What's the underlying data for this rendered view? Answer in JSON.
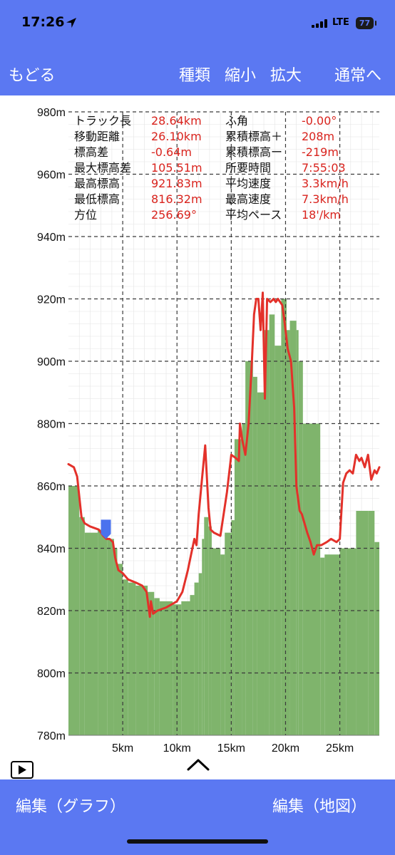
{
  "status": {
    "time": "17:26",
    "network": "LTE",
    "battery": "77",
    "icons": [
      "location-arrow-icon",
      "signal-bars-icon",
      "battery-icon"
    ]
  },
  "nav": {
    "back": "もどる",
    "type": "種類",
    "zoom_out": "縮小",
    "zoom_in": "拡大",
    "normal": "通常へ"
  },
  "stats": [
    {
      "label": "トラック長",
      "value": "28.64km"
    },
    {
      "label": "ふ角",
      "value": "-0.00°"
    },
    {
      "label": "移動距離",
      "value": "26.10km"
    },
    {
      "label": "累積標高＋",
      "value": "208m"
    },
    {
      "label": "標高差",
      "value": "-0.64m"
    },
    {
      "label": "累積標高ー",
      "value": "-219m"
    },
    {
      "label": "最大標高差",
      "value": "105.51m"
    },
    {
      "label": "所要時間",
      "value": "7:55:03"
    },
    {
      "label": "最高標高",
      "value": "921.83m"
    },
    {
      "label": "平均速度",
      "value": "3.3km/h"
    },
    {
      "label": "最低標高",
      "value": "816.32m"
    },
    {
      "label": "最高速度",
      "value": "7.3km/h"
    },
    {
      "label": "方位",
      "value": "256.69°"
    },
    {
      "label": "平均ペース",
      "value": "18'/km"
    }
  ],
  "colors": {
    "accent": "#5b78f2",
    "line": "#e3312a",
    "fill": "#7fb46c",
    "value_text": "#d9231d",
    "marker": "#4a72ee"
  },
  "chart_data": {
    "type": "area",
    "title": "",
    "xlabel": "",
    "ylabel": "",
    "x_unit": "km",
    "xlim": [
      0,
      28.64
    ],
    "ylim": [
      780,
      980
    ],
    "grid": true,
    "x_ticks": [
      5,
      10,
      15,
      20,
      25
    ],
    "x_tick_labels": [
      "5km",
      "10km",
      "15km",
      "20km",
      "25km"
    ],
    "y_ticks": [
      780,
      800,
      820,
      840,
      860,
      880,
      900,
      920,
      940,
      960,
      980
    ],
    "y_tick_labels": [
      "780m",
      "800m",
      "820m",
      "840m",
      "860m",
      "880m",
      "900m",
      "920m",
      "940m",
      "960m",
      "980m"
    ],
    "series": [
      {
        "kind": "line",
        "x": [
          0,
          0.5,
          0.8,
          1.2,
          1.5,
          2.0,
          2.8,
          3.2,
          3.5,
          3.8,
          4.1,
          4.3,
          4.6,
          5.0,
          5.5,
          6.2,
          6.8,
          7.2,
          7.5,
          7.6,
          7.8,
          8.2,
          9.0,
          9.5,
          10.0,
          10.5,
          11.0,
          11.3,
          11.6,
          11.8,
          12.0,
          12.3,
          12.6,
          12.9,
          13.1,
          13.4,
          14.0,
          14.6,
          15.0,
          15.4,
          15.7,
          15.8,
          16.0,
          16.3,
          16.6,
          16.9,
          17.1,
          17.3,
          17.5,
          17.7,
          17.9,
          18.0,
          18.1,
          18.3,
          18.6,
          18.9,
          19.1,
          19.3,
          19.5,
          19.7,
          19.9,
          20.2,
          20.5,
          20.8,
          21.0,
          21.3,
          21.5,
          22.0,
          22.3,
          22.6,
          22.9,
          23.3,
          23.8,
          24.2,
          24.7,
          25.0,
          25.3,
          25.6,
          25.9,
          26.2,
          26.5,
          26.8,
          27.0,
          27.3,
          27.6,
          27.9,
          28.2,
          28.4,
          28.64
        ],
        "y": [
          867,
          866,
          863,
          850,
          848,
          847,
          846,
          844,
          843,
          843,
          842,
          837,
          833,
          832,
          830,
          829,
          828,
          826,
          818,
          823,
          819,
          820,
          821,
          822,
          823,
          826,
          833,
          838,
          843,
          841,
          851,
          862,
          873,
          853,
          846,
          845,
          844,
          858,
          870,
          869,
          868,
          880,
          875,
          870,
          880,
          900,
          915,
          920,
          920,
          910,
          922,
          905,
          888,
          920,
          919,
          920,
          919,
          920,
          919,
          918,
          913,
          904,
          900,
          885,
          860,
          852,
          851,
          845,
          842,
          838,
          841,
          841,
          842,
          843,
          842,
          843,
          861,
          864,
          865,
          864,
          870,
          868,
          869,
          866,
          870,
          862,
          865,
          864,
          866
        ]
      },
      {
        "kind": "bar",
        "x": [
          0,
          1.0,
          1.5,
          2.7,
          3.6,
          4.2,
          4.5,
          5.0,
          5.5,
          6.2,
          7.3,
          7.9,
          8.4,
          9.6,
          10.4,
          11.2,
          11.6,
          12.0,
          12.3,
          12.5,
          12.9,
          13.2,
          14.0,
          14.4,
          15.0,
          15.3,
          16.0,
          16.3,
          17.0,
          17.4,
          18.0,
          18.5,
          19.0,
          19.6,
          20.1,
          20.4,
          21.0,
          21.2,
          21.6,
          23.2,
          23.6,
          25.0,
          25.6,
          26.5,
          27.6,
          28.2
        ],
        "y": [
          860,
          850,
          845,
          846,
          843,
          840,
          835,
          830,
          829,
          828,
          826,
          824,
          823,
          822,
          823,
          825,
          829,
          832,
          843,
          850,
          847,
          840,
          838,
          845,
          849,
          875,
          880,
          900,
          895,
          890,
          910,
          915,
          905,
          920,
          910,
          913,
          910,
          900,
          880,
          837,
          838,
          840,
          840,
          852,
          852,
          842
        ]
      }
    ]
  }
}
